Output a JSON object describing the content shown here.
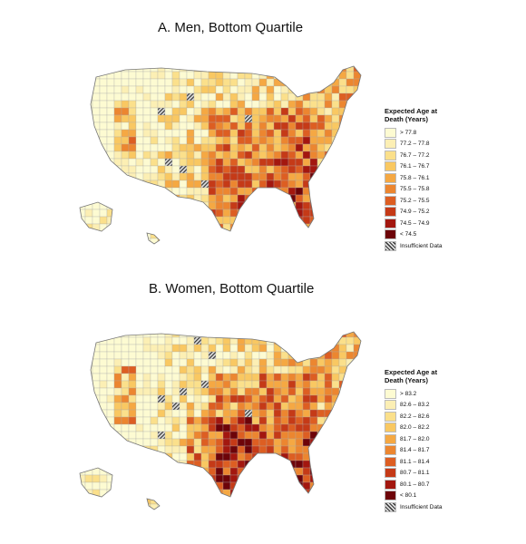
{
  "panels": [
    {
      "title": "A. Men, Bottom Quartile",
      "legend": {
        "title": "Expected Age at Death (Years)",
        "items": [
          {
            "label": "> 77.8",
            "color": "#fdfbd2"
          },
          {
            "label": "77.2 – 77.8",
            "color": "#fcefb4"
          },
          {
            "label": "76.7 – 77.2",
            "color": "#fbe08b"
          },
          {
            "label": "76.1 – 76.7",
            "color": "#f9c862"
          },
          {
            "label": "75.8 – 76.1",
            "color": "#f5a843"
          },
          {
            "label": "75.5 – 75.8",
            "color": "#ec8630"
          },
          {
            "label": "75.2 – 75.5",
            "color": "#dd5e22"
          },
          {
            "label": "74.9 – 75.2",
            "color": "#c53a17"
          },
          {
            "label": "74.5 – 74.9",
            "color": "#a3170f"
          },
          {
            "label": "< 74.5",
            "color": "#6d0409"
          },
          {
            "label": "Insufficient Data",
            "color": "hatch"
          }
        ]
      }
    },
    {
      "title": "B. Women, Bottom Quartile",
      "legend": {
        "title": "Expected Age at Death (Years)",
        "items": [
          {
            "label": "> 83.2",
            "color": "#fdfbd2"
          },
          {
            "label": "82.6 – 83.2",
            "color": "#fcefb4"
          },
          {
            "label": "82.2 – 82.6",
            "color": "#fbe08b"
          },
          {
            "label": "82.0 – 82.2",
            "color": "#f9c862"
          },
          {
            "label": "81.7 – 82.0",
            "color": "#f5a843"
          },
          {
            "label": "81.4 – 81.7",
            "color": "#ec8630"
          },
          {
            "label": "81.1 – 81.4",
            "color": "#dd5e22"
          },
          {
            "label": "80.7 – 81.1",
            "color": "#c53a17"
          },
          {
            "label": "80.1 – 80.7",
            "color": "#a3170f"
          },
          {
            "label": "< 80.1",
            "color": "#6d0409"
          },
          {
            "label": "Insufficient Data",
            "color": "hatch"
          }
        ]
      }
    }
  ]
}
